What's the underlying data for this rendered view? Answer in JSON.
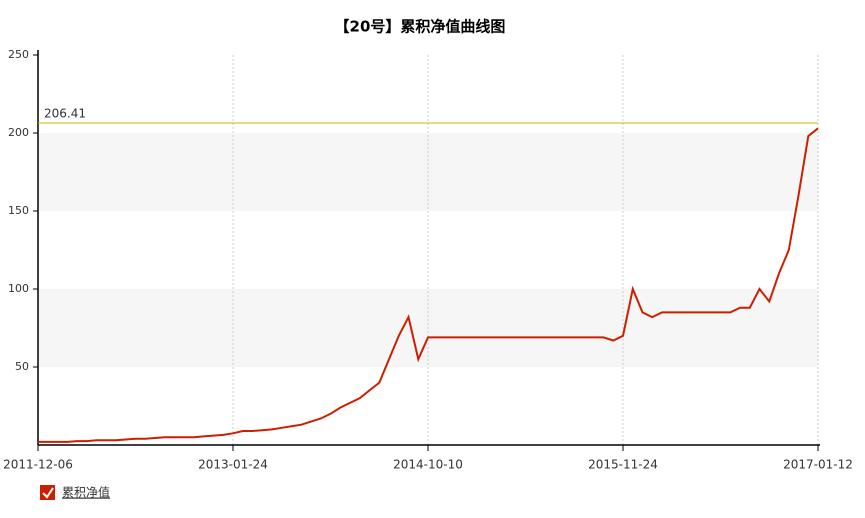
{
  "chart_data": {
    "type": "line",
    "title": "【20号】累积净值曲线图",
    "categories": [
      "2011-12-06",
      null,
      null,
      null,
      null,
      null,
      null,
      null,
      null,
      null,
      null,
      null,
      null,
      null,
      null,
      null,
      null,
      null,
      null,
      null,
      "2013-01-24",
      null,
      null,
      null,
      null,
      null,
      null,
      null,
      null,
      null,
      null,
      null,
      null,
      null,
      null,
      null,
      null,
      null,
      null,
      null,
      "2014-10-10",
      null,
      null,
      null,
      null,
      null,
      null,
      null,
      null,
      null,
      null,
      null,
      null,
      null,
      null,
      null,
      null,
      null,
      null,
      null,
      "2015-11-24",
      null,
      null,
      null,
      null,
      null,
      null,
      null,
      null,
      null,
      null,
      null,
      null,
      null,
      null,
      null,
      null,
      null,
      null,
      null,
      "2017-01-12"
    ],
    "series": [
      {
        "name": "累积净值",
        "color": "#cc1f00",
        "values": [
          2,
          2,
          2,
          2,
          2.5,
          2.5,
          3,
          3,
          3,
          3.5,
          4,
          4,
          4.5,
          5,
          5,
          5,
          5,
          5.5,
          6,
          6.5,
          7.5,
          9,
          9,
          9.5,
          10,
          11,
          12,
          13,
          15,
          17,
          20,
          24,
          27,
          30,
          35,
          40,
          55,
          70,
          82,
          55,
          69,
          69,
          69,
          69,
          69,
          69,
          69,
          69,
          69,
          69,
          69,
          69,
          69,
          69,
          69,
          69,
          69,
          69,
          69,
          67,
          70,
          100,
          85,
          82,
          85,
          85,
          85,
          85,
          85,
          85,
          85,
          85,
          88,
          88,
          100,
          92,
          110,
          125,
          160,
          198,
          203
        ]
      }
    ],
    "reference_line": 206.41,
    "ylim": [
      0,
      250
    ],
    "yticks": [
      50,
      100,
      150,
      200,
      250
    ]
  }
}
